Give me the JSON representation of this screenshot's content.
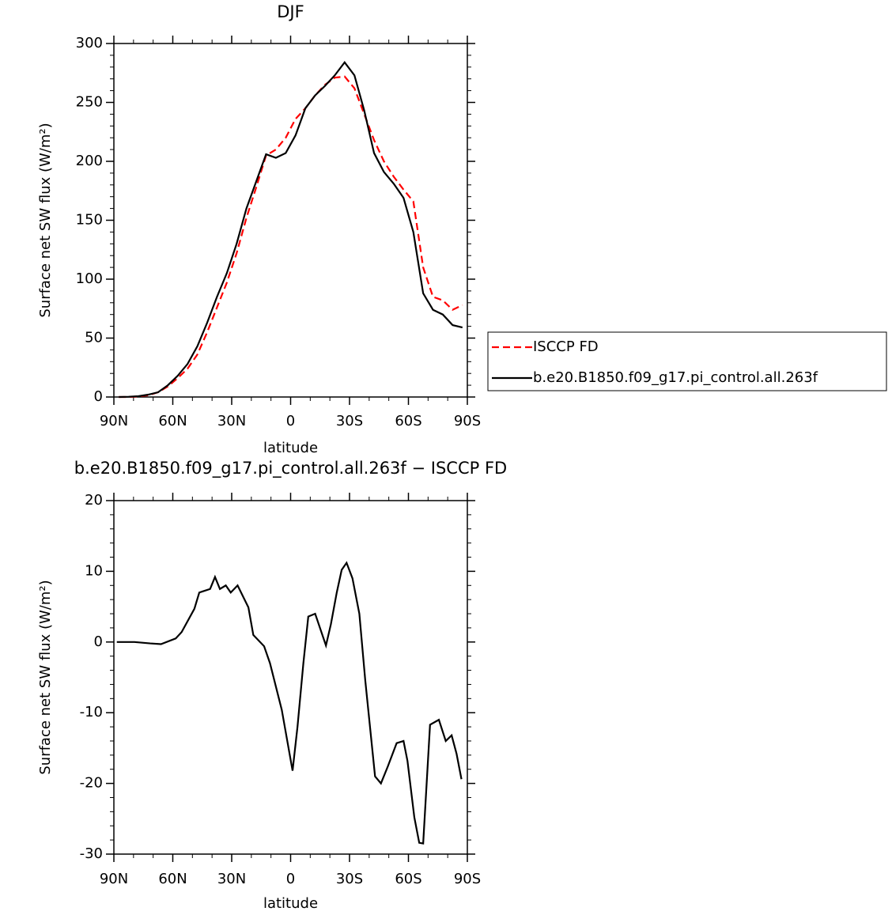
{
  "chart_data": [
    {
      "type": "line",
      "title": "DJF",
      "x_label": "latitude",
      "y_label": "Surface net SW flux (W/m²)",
      "x": [
        87.5,
        82.5,
        77.5,
        72.5,
        67.5,
        62.5,
        57.5,
        52.5,
        47.5,
        42.5,
        37.5,
        32.5,
        27.5,
        22.5,
        17.5,
        12.5,
        7.5,
        2.5,
        -2.5,
        -7.5,
        -12.5,
        -17.5,
        -22.5,
        -27.5,
        -32.5,
        -37.5,
        -42.5,
        -47.5,
        -52.5,
        -57.5,
        -62.5,
        -67.5,
        -72.5,
        -77.5,
        -82.5,
        -87.5
      ],
      "xlim": [
        90,
        -90
      ],
      "xticks": [
        {
          "value": 90,
          "label": "90N"
        },
        {
          "value": 60,
          "label": "60N"
        },
        {
          "value": 30,
          "label": "30N"
        },
        0,
        {
          "value": -30,
          "label": "30S"
        },
        {
          "value": -60,
          "label": "60S"
        },
        {
          "value": -90,
          "label": "90S"
        }
      ],
      "ylim": [
        0,
        300
      ],
      "yticks": [
        0,
        50,
        100,
        150,
        200,
        250,
        300
      ],
      "series": [
        {
          "name": "ISCCP FD",
          "color": "#ff0000",
          "dash": "dashed",
          "values": [
            0,
            0,
            0.5,
            1.5,
            4,
            9,
            16,
            24,
            36,
            55,
            76,
            97,
            122,
            152,
            178,
            205,
            210,
            220,
            236,
            245,
            256,
            265,
            271,
            272,
            262,
            240,
            218,
            200,
            187,
            176,
            166,
            110,
            85,
            82,
            74,
            78
          ]
        },
        {
          "name": "b.e20.B1850.f09_g17.pi_control.all.263f",
          "color": "#000000",
          "values": [
            0,
            0.2,
            0.7,
            2,
            4,
            10,
            18,
            28,
            43,
            63,
            85,
            105,
            130,
            160,
            183,
            206,
            203,
            207,
            222,
            245,
            256,
            264,
            273,
            284,
            273,
            243,
            207,
            191,
            181,
            169,
            140,
            88,
            74,
            70,
            61,
            59
          ]
        }
      ],
      "legend": "right"
    },
    {
      "type": "line",
      "title": "b.e20.B1850.f09_g17.pi_control.all.263f − ISCCP FD",
      "x_label": "latitude",
      "y_label": "Surface net SW flux (W/m²)",
      "x": [
        88.5,
        79.5,
        71.5,
        66,
        58.5,
        55.5,
        49,
        46.5,
        41,
        38.5,
        36,
        33,
        30.5,
        27,
        21.5,
        19,
        13.5,
        10.5,
        4.5,
        -1,
        -3.5,
        -6.5,
        -9,
        -12.5,
        -18,
        -20.5,
        -23.5,
        -26,
        -28.5,
        -31.5,
        -35,
        -38,
        -43,
        -46,
        -49.5,
        -54,
        -57.5,
        -59.5,
        -63,
        -65.5,
        -67.5,
        -71,
        -75.5,
        -79,
        -82,
        -84.5,
        -87
      ],
      "xlim": [
        90,
        -90
      ],
      "xticks": [
        {
          "value": 90,
          "label": "90N"
        },
        {
          "value": 60,
          "label": "60N"
        },
        {
          "value": 30,
          "label": "30N"
        },
        0,
        {
          "value": -30,
          "label": "30S"
        },
        {
          "value": -60,
          "label": "60S"
        },
        {
          "value": -90,
          "label": "90S"
        }
      ],
      "ylim": [
        -30,
        20
      ],
      "yticks": [
        -30,
        -20,
        -10,
        0,
        10,
        20
      ],
      "series": [
        {
          "color": "#000000",
          "values": [
            0,
            0,
            -0.2,
            -0.3,
            0.5,
            1.4,
            4.7,
            7,
            7.5,
            9.2,
            7.5,
            8,
            7,
            8,
            4.9,
            1,
            -0.6,
            -3,
            -9.6,
            -18.2,
            -12,
            -3,
            3.6,
            4,
            -0.5,
            2.5,
            7,
            10.2,
            11.2,
            9,
            4,
            -5.4,
            -19,
            -20,
            -17.6,
            -14.3,
            -14,
            -16.8,
            -24.8,
            -28.4,
            -28.5,
            -11.7,
            -11,
            -14,
            -13.2,
            -15.8,
            -19.4
          ]
        }
      ]
    }
  ]
}
